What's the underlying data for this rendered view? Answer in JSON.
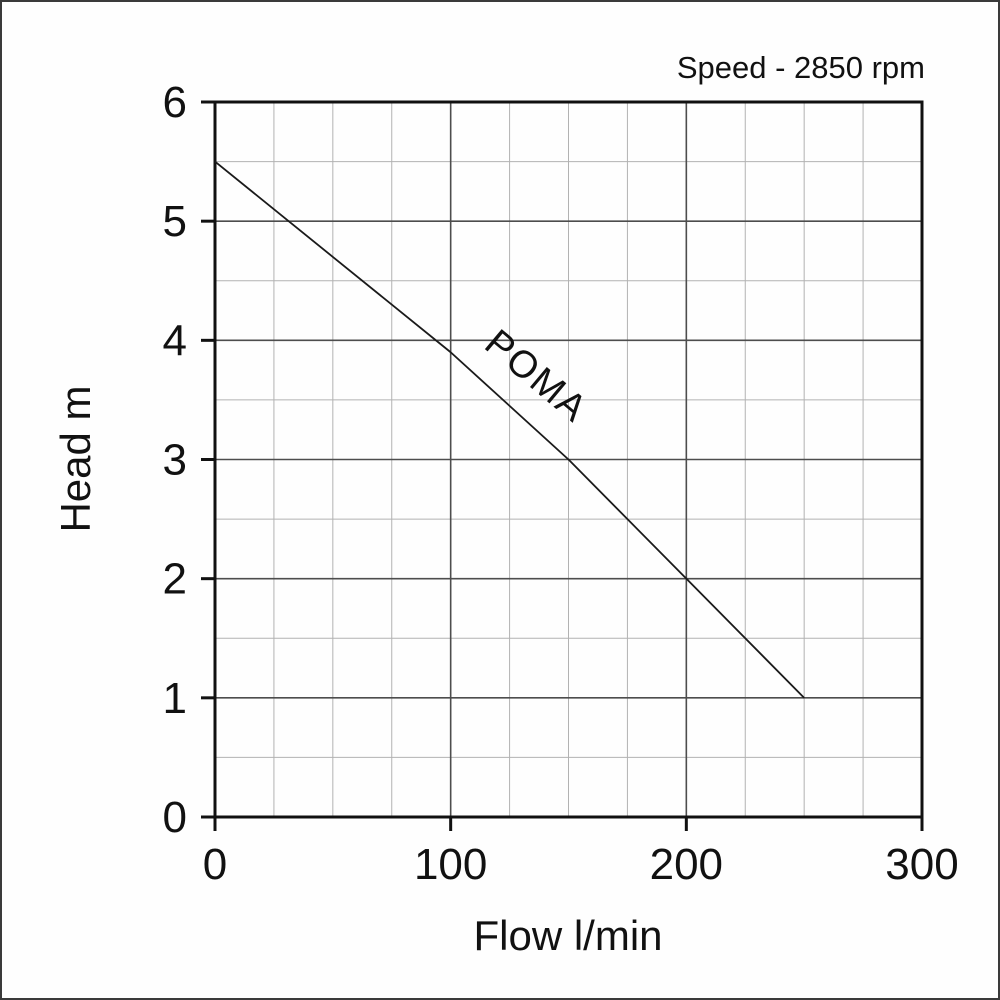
{
  "annotation": {
    "speed_label": "Speed - 2850 rpm"
  },
  "chart_data": {
    "type": "line",
    "title": "Speed - 2850 rpm",
    "xlabel": "Flow l/min",
    "ylabel": "Head m",
    "xlim": [
      0,
      300
    ],
    "ylim": [
      0,
      6
    ],
    "x_major_ticks": [
      0,
      100,
      200,
      300
    ],
    "y_major_ticks": [
      0,
      1,
      2,
      3,
      4,
      5,
      6
    ],
    "x_minor_step": 25,
    "y_minor_step": 0.5,
    "grid": "on",
    "legend_position": "none",
    "series": [
      {
        "name": "POMA",
        "x": [
          0,
          50,
          100,
          150,
          200,
          250
        ],
        "y": [
          5.5,
          4.7,
          3.9,
          3.0,
          2.0,
          1.0
        ],
        "color": "#1a1a1a",
        "label_position": {
          "x": 133,
          "y": 3.62,
          "rotation_deg": 40
        }
      }
    ],
    "colors": {
      "grid_minor": "#b2b2b2",
      "grid_major": "#4d4d4d",
      "axis": "#111111",
      "background": "#fefefe"
    }
  }
}
